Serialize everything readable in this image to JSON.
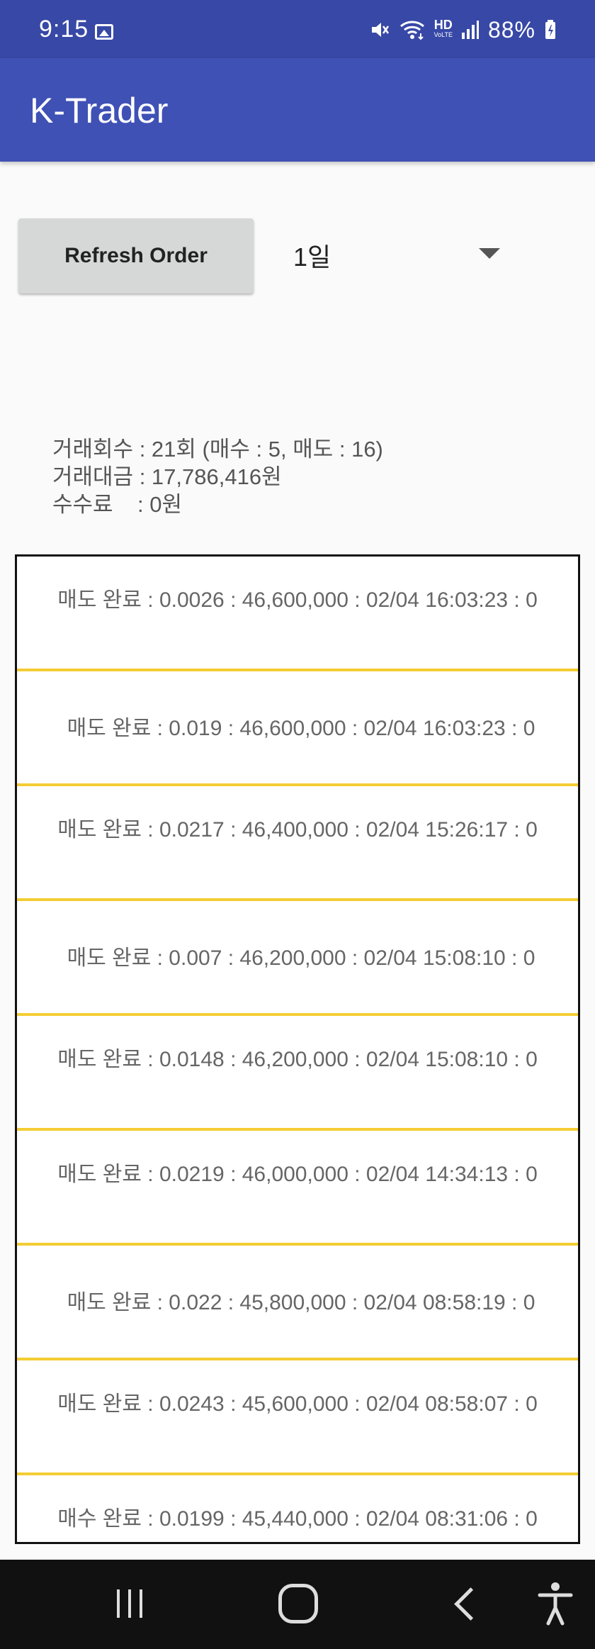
{
  "status_bar": {
    "time": "9:15",
    "battery": "88%",
    "hd_label": "HD",
    "voice_label": "VoLTE",
    "icons": [
      "photo-icon",
      "mute-icon",
      "wifi-icon",
      "hd-voice-icon",
      "signal-icon",
      "battery-icon"
    ]
  },
  "app_bar": {
    "title": "K-Trader"
  },
  "controls": {
    "refresh_label": "Refresh Order",
    "period_value": "1일"
  },
  "stats": {
    "trade_count": "거래회수 : 21회 (매수 : 5, 매도 : 16)",
    "trade_amount": "거래대금 : 17,786,416원",
    "fee": "수수료    : 0원"
  },
  "orders": [
    "매도 완료 : 0.0026 : 46,600,000 : 02/04 16:03:23 : 0",
    "매도 완료 : 0.019 : 46,600,000 : 02/04 16:03:23 : 0",
    "매도 완료 : 0.0217 : 46,400,000 : 02/04 15:26:17 : 0",
    "매도 완료 : 0.007 : 46,200,000 : 02/04 15:08:10 : 0",
    "매도 완료 : 0.0148 : 46,200,000 : 02/04 15:08:10 : 0",
    "매도 완료 : 0.0219 : 46,000,000 : 02/04 14:34:13 : 0",
    "매도 완료 : 0.022 : 45,800,000 : 02/04 08:58:19 : 0",
    "매도 완료 : 0.0243 : 45,600,000 : 02/04 08:58:07 : 0",
    "매수 완료 : 0.0199 : 45,440,000 : 02/04 08:31:06 : 0"
  ],
  "colors": {
    "status_bar": "#3748a6",
    "app_bar": "#3f51b5",
    "row_divider": "#f4cd33",
    "nav_bar": "#111111"
  }
}
